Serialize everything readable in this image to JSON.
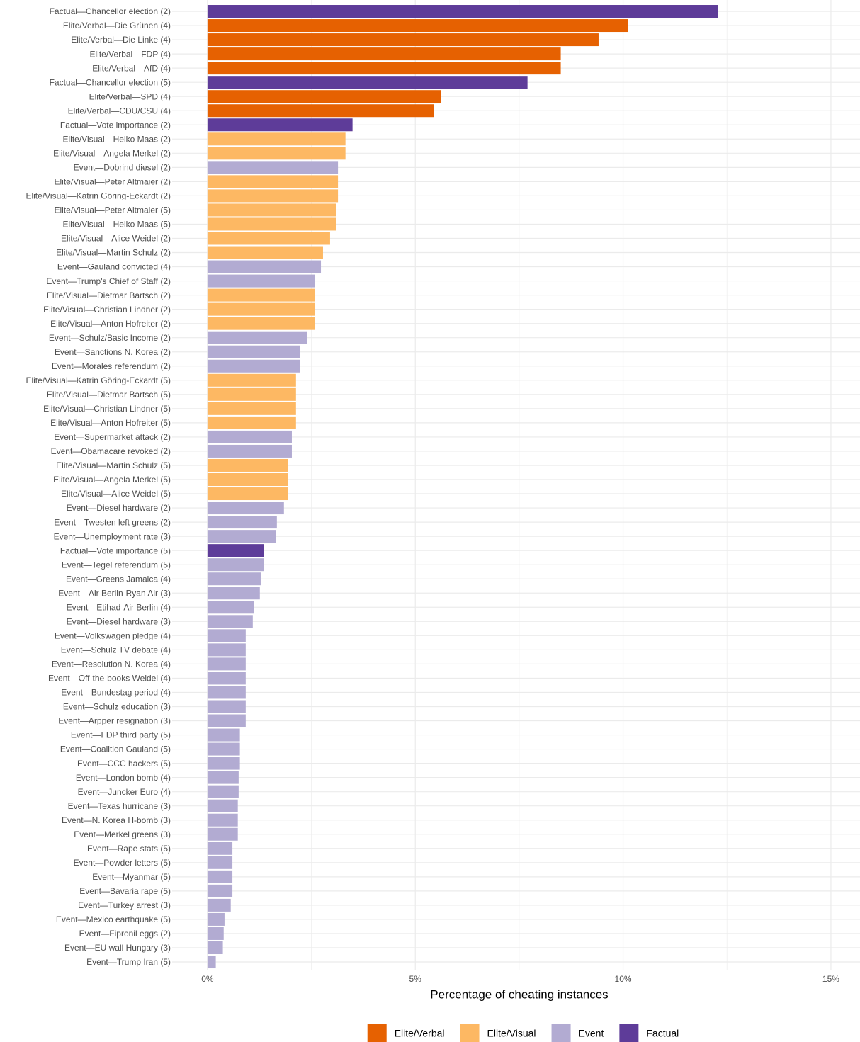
{
  "chart_data": {
    "type": "barh",
    "x_label": "Percentage of cheating instances",
    "categories": [
      "Factual—Chancellor election (2)",
      "Elite/Verbal—Die Grünen (4)",
      "Elite/Verbal—Die Linke (4)",
      "Elite/Verbal—FDP (4)",
      "Elite/Verbal—AfD (4)",
      "Factual—Chancellor election (5)",
      "Elite/Verbal—SPD (4)",
      "Elite/Verbal—CDU/CSU (4)",
      "Factual—Vote importance (2)",
      "Elite/Visual—Heiko Maas (2)",
      "Elite/Visual—Angela Merkel (2)",
      "Event—Dobrind diesel (2)",
      "Elite/Visual—Peter Altmaier (2)",
      "Elite/Visual—Katrin Göring-Eckardt (2)",
      "Elite/Visual—Peter Altmaier (5)",
      "Elite/Visual—Heiko Maas (5)",
      "Elite/Visual—Alice Weidel (2)",
      "Elite/Visual—Martin Schulz (2)",
      "Event—Gauland convicted (4)",
      "Event—Trump's Chief of Staff (2)",
      "Elite/Visual—Dietmar Bartsch (2)",
      "Elite/Visual—Christian Lindner (2)",
      "Elite/Visual—Anton Hofreiter (2)",
      "Event—Schulz/Basic Income (2)",
      "Event—Sanctions N. Korea (2)",
      "Event—Morales referendum (2)",
      "Elite/Visual—Katrin Göring-Eckardt (5)",
      "Elite/Visual—Dietmar Bartsch (5)",
      "Elite/Visual—Christian Lindner (5)",
      "Elite/Visual—Anton Hofreiter (5)",
      "Event—Supermarket attack (2)",
      "Event—Obamacare revoked (2)",
      "Elite/Visual—Martin Schulz (5)",
      "Elite/Visual—Angela Merkel (5)",
      "Elite/Visual—Alice Weidel (5)",
      "Event—Diesel hardware (2)",
      "Event—Twesten left greens (2)",
      "Event—Unemployment rate (3)",
      "Factual—Vote importance (5)",
      "Event—Tegel referendum (5)",
      "Event—Greens Jamaica (4)",
      "Event—Air Berlin-Ryan Air (3)",
      "Event—Etihad-Air Berlin (4)",
      "Event—Diesel hardware (3)",
      "Event—Volkswagen pledge (4)",
      "Event—Schulz TV debate (4)",
      "Event—Resolution N. Korea (4)",
      "Event—Off-the-books Weidel (4)",
      "Event—Bundestag period (4)",
      "Event—Schulz education (3)",
      "Event—Arpper resignation (3)",
      "Event—FDP third party (5)",
      "Event—Coalition Gauland (5)",
      "Event—CCC hackers (5)",
      "Event—London bomb (4)",
      "Event—Juncker Euro (4)",
      "Event—Texas hurricane (3)",
      "Event—N. Korea H-bomb (3)",
      "Event—Merkel greens (3)",
      "Event—Rape stats (5)",
      "Event—Powder letters (5)",
      "Event—Myanmar (5)",
      "Event—Bavaria rape (5)",
      "Event—Turkey arrest (3)",
      "Event—Mexico earthquake (5)",
      "Event—Fipronil eggs (2)",
      "Event—EU wall Hungary (3)",
      "Event—Trump Iran (5)"
    ],
    "series": [
      {
        "name": "Elite/Verbal",
        "color": "#e66101",
        "values": [
          null,
          10.12,
          9.41,
          8.5,
          8.5,
          null,
          5.62,
          5.44,
          null,
          null,
          null,
          null,
          null,
          null,
          null,
          null,
          null,
          null,
          null,
          null,
          null,
          null,
          null,
          null,
          null,
          null,
          null,
          null,
          null,
          null,
          null,
          null,
          null,
          null,
          null,
          null,
          null,
          null,
          null,
          null,
          null,
          null,
          null,
          null,
          null,
          null,
          null,
          null,
          null,
          null,
          null,
          null,
          null,
          null,
          null,
          null,
          null,
          null,
          null,
          null,
          null,
          null,
          null,
          null,
          null,
          null,
          null,
          null
        ]
      },
      {
        "name": "Elite/Visual",
        "color": "#fdb863",
        "values": [
          null,
          null,
          null,
          null,
          null,
          null,
          null,
          null,
          null,
          3.32,
          3.32,
          null,
          3.14,
          3.14,
          3.1,
          3.1,
          2.95,
          2.78,
          null,
          null,
          2.59,
          2.59,
          2.59,
          null,
          null,
          null,
          2.13,
          2.13,
          2.13,
          2.13,
          null,
          null,
          1.94,
          1.94,
          1.94,
          null,
          null,
          null,
          null,
          null,
          null,
          null,
          null,
          null,
          null,
          null,
          null,
          null,
          null,
          null,
          null,
          null,
          null,
          null,
          null,
          null,
          null,
          null,
          null,
          null,
          null,
          null,
          null,
          null,
          null,
          null,
          null,
          null
        ]
      },
      {
        "name": "Event",
        "color": "#b2abd2",
        "values": [
          null,
          null,
          null,
          null,
          null,
          null,
          null,
          null,
          null,
          null,
          null,
          3.14,
          null,
          null,
          null,
          null,
          null,
          null,
          2.73,
          2.59,
          null,
          null,
          null,
          2.4,
          2.22,
          2.22,
          null,
          null,
          null,
          null,
          2.03,
          2.03,
          null,
          null,
          null,
          1.84,
          1.67,
          1.64,
          null,
          1.36,
          1.28,
          1.26,
          1.11,
          1.09,
          0.92,
          0.92,
          0.92,
          0.92,
          0.92,
          0.92,
          0.92,
          0.78,
          0.78,
          0.78,
          0.75,
          0.75,
          0.73,
          0.73,
          0.73,
          0.6,
          0.6,
          0.6,
          0.6,
          0.56,
          0.41,
          0.39,
          0.37,
          0.2
        ]
      },
      {
        "name": "Factual",
        "color": "#5e3c99",
        "values": [
          12.29,
          null,
          null,
          null,
          null,
          7.7,
          null,
          null,
          3.49,
          null,
          null,
          null,
          null,
          null,
          null,
          null,
          null,
          null,
          null,
          null,
          null,
          null,
          null,
          null,
          null,
          null,
          null,
          null,
          null,
          null,
          null,
          null,
          null,
          null,
          null,
          null,
          null,
          null,
          1.36,
          null,
          null,
          null,
          null,
          null,
          null,
          null,
          null,
          null,
          null,
          null,
          null,
          null,
          null,
          null,
          null,
          null,
          null,
          null,
          null,
          null,
          null,
          null,
          null,
          null,
          null,
          null,
          null,
          null
        ]
      }
    ],
    "xlim": [
      -0.85,
      15.7
    ],
    "xticks": [
      {
        "value": 0,
        "label": "0%"
      },
      {
        "value": 5,
        "label": "5%"
      },
      {
        "value": 10,
        "label": "10%"
      },
      {
        "value": 15,
        "label": "15%"
      }
    ],
    "xminorticks": [
      2.5,
      7.5,
      12.5
    ],
    "grid": true,
    "legend": "bottom"
  }
}
